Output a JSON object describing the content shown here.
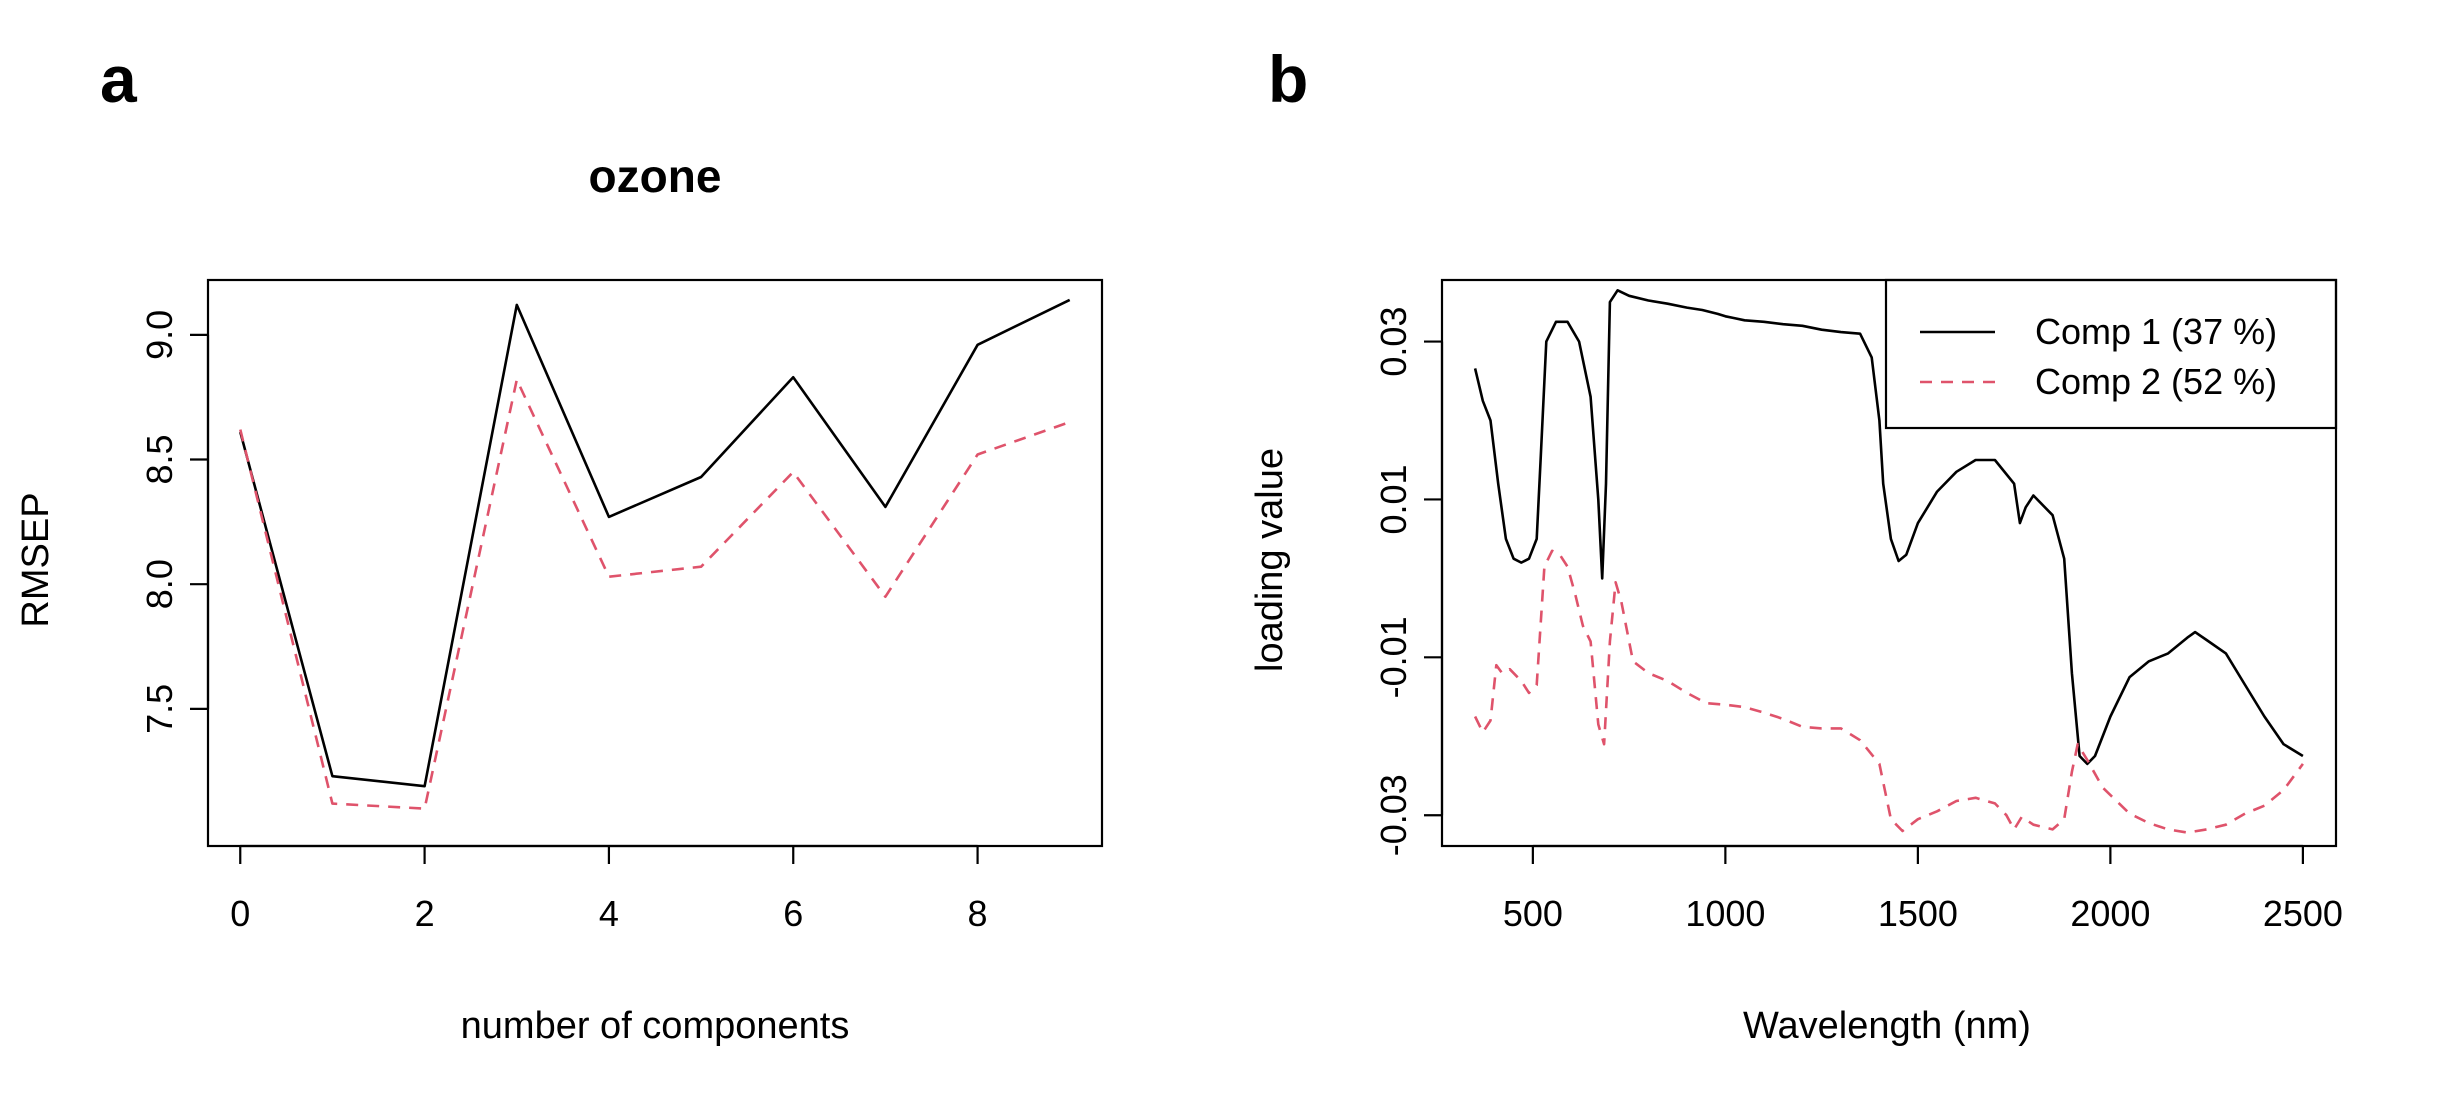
{
  "colors": {
    "series1": "#000000",
    "series2": "#DF536B"
  },
  "chart_data": [
    {
      "panel_label": "a",
      "type": "line",
      "title": "ozone",
      "xlabel": "number of components",
      "ylabel": "RMSEP",
      "xlim": [
        -0.35,
        9.35
      ],
      "ylim": [
        6.95,
        9.22
      ],
      "xticks": [
        0,
        2,
        4,
        6,
        8
      ],
      "yticks": [
        7.5,
        8.0,
        8.5,
        9.0
      ],
      "ytick_labels": [
        "7.5",
        "8.0",
        "8.5",
        "9.0"
      ],
      "grid": false,
      "x": [
        0,
        1,
        2,
        3,
        4,
        5,
        6,
        7,
        8,
        9
      ],
      "series": [
        {
          "color": "#000000",
          "linestyle": "solid",
          "values": [
            8.61,
            7.23,
            7.19,
            9.12,
            8.27,
            8.43,
            8.83,
            8.31,
            8.96,
            9.14
          ]
        },
        {
          "color": "#DF536B",
          "linestyle": "dashed",
          "values": [
            8.62,
            7.12,
            7.1,
            8.82,
            8.03,
            8.07,
            8.45,
            7.95,
            8.52,
            8.65
          ]
        }
      ]
    },
    {
      "panel_label": "b",
      "type": "line",
      "title": "",
      "xlabel": "Wavelength (nm)",
      "ylabel": "loading value",
      "xlim": [
        264,
        2586
      ],
      "ylim": [
        -0.0339,
        0.0378
      ],
      "xticks": [
        500,
        1000,
        1500,
        2000,
        2500
      ],
      "yticks": [
        -0.03,
        -0.01,
        0.01,
        0.03
      ],
      "ytick_labels": [
        "-0.03",
        "-0.01",
        "0.01",
        "0.03"
      ],
      "grid": false,
      "legend_position": "top-right",
      "series": [
        {
          "name": "Comp 1 (37 %)",
          "color": "#000000",
          "linestyle": "solid",
          "points": [
            [
              350,
              0.0266
            ],
            [
              370,
              0.0225
            ],
            [
              390,
              0.02
            ],
            [
              410,
              0.012
            ],
            [
              430,
              0.005
            ],
            [
              450,
              0.0025
            ],
            [
              470,
              0.002
            ],
            [
              490,
              0.0025
            ],
            [
              510,
              0.005
            ],
            [
              520,
              0.015
            ],
            [
              535,
              0.03
            ],
            [
              560,
              0.0325
            ],
            [
              590,
              0.0325
            ],
            [
              620,
              0.03
            ],
            [
              650,
              0.023
            ],
            [
              670,
              0.01
            ],
            [
              680,
              0.0
            ],
            [
              690,
              0.012
            ],
            [
              700,
              0.035
            ],
            [
              720,
              0.0365
            ],
            [
              750,
              0.0358
            ],
            [
              800,
              0.0352
            ],
            [
              850,
              0.0348
            ],
            [
              900,
              0.0343
            ],
            [
              940,
              0.034
            ],
            [
              980,
              0.0335
            ],
            [
              1000,
              0.0332
            ],
            [
              1020,
              0.033
            ],
            [
              1050,
              0.0327
            ],
            [
              1100,
              0.0325
            ],
            [
              1150,
              0.0322
            ],
            [
              1200,
              0.032
            ],
            [
              1250,
              0.0315
            ],
            [
              1300,
              0.0312
            ],
            [
              1350,
              0.031
            ],
            [
              1380,
              0.028
            ],
            [
              1400,
              0.02
            ],
            [
              1410,
              0.012
            ],
            [
              1430,
              0.005
            ],
            [
              1450,
              0.0022
            ],
            [
              1470,
              0.003
            ],
            [
              1500,
              0.007
            ],
            [
              1550,
              0.011
            ],
            [
              1600,
              0.0135
            ],
            [
              1650,
              0.015
            ],
            [
              1700,
              0.015
            ],
            [
              1750,
              0.012
            ],
            [
              1765,
              0.007
            ],
            [
              1780,
              0.009
            ],
            [
              1800,
              0.0105
            ],
            [
              1850,
              0.008
            ],
            [
              1880,
              0.0025
            ],
            [
              1900,
              -0.012
            ],
            [
              1920,
              -0.0225
            ],
            [
              1940,
              -0.0235
            ],
            [
              1960,
              -0.0225
            ],
            [
              2000,
              -0.0175
            ],
            [
              2050,
              -0.0125
            ],
            [
              2100,
              -0.0105
            ],
            [
              2150,
              -0.0095
            ],
            [
              2200,
              -0.0075
            ],
            [
              2220,
              -0.0068
            ],
            [
              2250,
              -0.0078
            ],
            [
              2300,
              -0.0095
            ],
            [
              2350,
              -0.0135
            ],
            [
              2400,
              -0.0175
            ],
            [
              2450,
              -0.021
            ],
            [
              2500,
              -0.0225
            ]
          ]
        },
        {
          "name": "Comp 2 (52 %)",
          "color": "#DF536B",
          "linestyle": "dashed",
          "points": [
            [
              350,
              -0.0175
            ],
            [
              370,
              -0.0195
            ],
            [
              390,
              -0.018
            ],
            [
              405,
              -0.011
            ],
            [
              420,
              -0.012
            ],
            [
              440,
              -0.0115
            ],
            [
              470,
              -0.013
            ],
            [
              490,
              -0.0145
            ],
            [
              510,
              -0.0135
            ],
            [
              530,
              0.0015
            ],
            [
              550,
              0.0035
            ],
            [
              570,
              0.003
            ],
            [
              590,
              0.0015
            ],
            [
              610,
              -0.002
            ],
            [
              630,
              -0.006
            ],
            [
              650,
              -0.008
            ],
            [
              670,
              -0.0185
            ],
            [
              685,
              -0.021
            ],
            [
              700,
              -0.008
            ],
            [
              715,
              -0.0005
            ],
            [
              730,
              -0.003
            ],
            [
              760,
              -0.0105
            ],
            [
              800,
              -0.012
            ],
            [
              850,
              -0.013
            ],
            [
              900,
              -0.0145
            ],
            [
              950,
              -0.0158
            ],
            [
              1000,
              -0.016
            ],
            [
              1050,
              -0.0163
            ],
            [
              1100,
              -0.017
            ],
            [
              1150,
              -0.0178
            ],
            [
              1200,
              -0.0188
            ],
            [
              1250,
              -0.019
            ],
            [
              1300,
              -0.019
            ],
            [
              1350,
              -0.0205
            ],
            [
              1400,
              -0.0235
            ],
            [
              1430,
              -0.0305
            ],
            [
              1460,
              -0.032
            ],
            [
              1500,
              -0.0305
            ],
            [
              1550,
              -0.0295
            ],
            [
              1600,
              -0.0282
            ],
            [
              1650,
              -0.0278
            ],
            [
              1700,
              -0.0285
            ],
            [
              1730,
              -0.03
            ],
            [
              1750,
              -0.0318
            ],
            [
              1770,
              -0.0302
            ],
            [
              1800,
              -0.0312
            ],
            [
              1850,
              -0.0318
            ],
            [
              1880,
              -0.0305
            ],
            [
              1900,
              -0.0245
            ],
            [
              1915,
              -0.021
            ],
            [
              1940,
              -0.023
            ],
            [
              1980,
              -0.0265
            ],
            [
              2050,
              -0.0298
            ],
            [
              2100,
              -0.031
            ],
            [
              2150,
              -0.0318
            ],
            [
              2200,
              -0.0322
            ],
            [
              2250,
              -0.0318
            ],
            [
              2300,
              -0.0312
            ],
            [
              2350,
              -0.0298
            ],
            [
              2400,
              -0.0288
            ],
            [
              2450,
              -0.0268
            ],
            [
              2500,
              -0.0235
            ]
          ]
        }
      ]
    }
  ]
}
